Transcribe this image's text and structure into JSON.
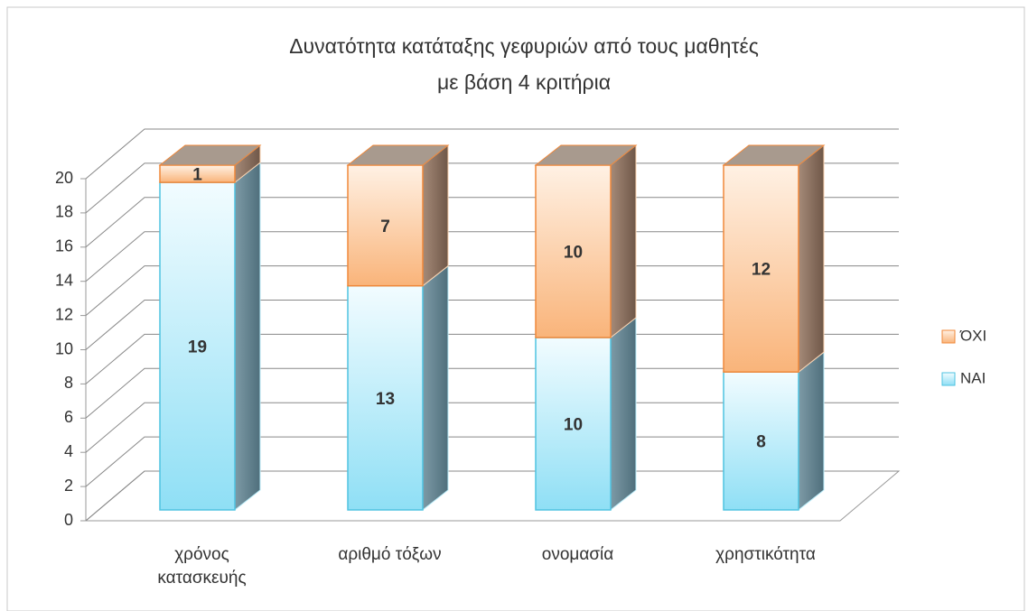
{
  "chart_data": {
    "type": "bar3d_stacked",
    "title": [
      "Δυνατότητα  κατάταξης γεφυριών από τους μαθητές",
      "με βάση 4 κριτήρια"
    ],
    "categories": [
      "χρόνος κατασκευής",
      "αριθμό τόξων",
      "ονομασία",
      "χρηστικότητα"
    ],
    "series": [
      {
        "name": "ΝΑΙ",
        "color": "#bdeefa",
        "values": [
          19,
          13,
          10,
          8
        ]
      },
      {
        "name": "ΌΧΙ",
        "color": "#fcd3b0",
        "values": [
          1,
          7,
          10,
          12
        ]
      }
    ],
    "ylim": [
      0,
      20
    ],
    "yticks": [
      0,
      2,
      4,
      6,
      8,
      10,
      12,
      14,
      16,
      18,
      20
    ],
    "grid": true,
    "legend": "right"
  }
}
